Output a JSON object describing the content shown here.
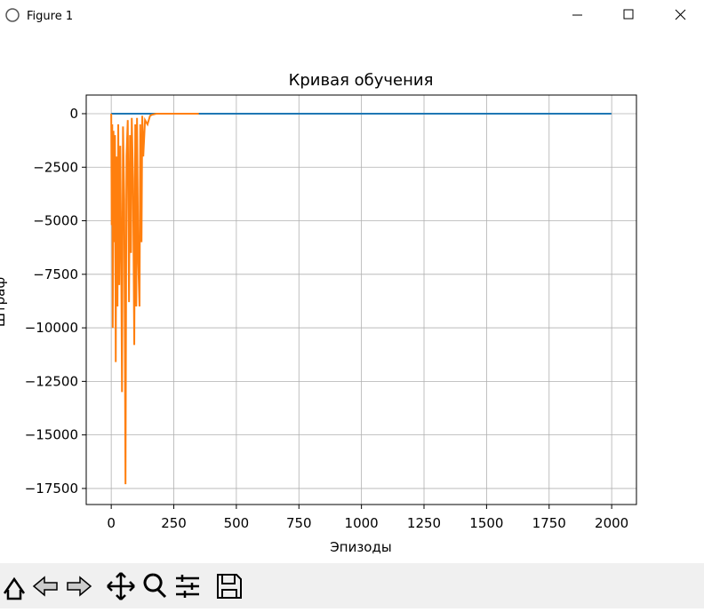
{
  "window": {
    "title": "Figure 1"
  },
  "chart_data": {
    "type": "line",
    "title": "Кривая обучения",
    "x_label": "Эпизоды",
    "y_label": "Штраф",
    "xlim": [
      -100,
      2099
    ],
    "ylim": [
      -18250,
      870
    ],
    "grid": true,
    "xticks": [
      0,
      250,
      500,
      750,
      1000,
      1250,
      1500,
      1750,
      2000
    ],
    "yticks": [
      0,
      {
        "value": -2500,
        "label": "−2500"
      },
      {
        "value": -5000,
        "label": "−5000"
      },
      {
        "value": -7500,
        "label": "−7500"
      },
      {
        "value": -10000,
        "label": "−10000"
      },
      {
        "value": -12500,
        "label": "−12500"
      },
      {
        "value": -15000,
        "label": "−15000"
      },
      {
        "value": -17500,
        "label": "−17500"
      }
    ],
    "series": [
      {
        "color": "#1f77b4",
        "x": [
          0,
          1999
        ],
        "values": [
          0,
          0
        ]
      },
      {
        "color": "#ff7f0e",
        "x": [
          0,
          2,
          4,
          6,
          9,
          12,
          15,
          18,
          21,
          25,
          28,
          32,
          36,
          40,
          43,
          47,
          52,
          57,
          61,
          66,
          71,
          75,
          79,
          82,
          87,
          92,
          96,
          100,
          103,
          108,
          113,
          116,
          121,
          124,
          128,
          135,
          145,
          155,
          163,
          180,
          250,
          350
        ],
        "values": [
          0,
          -5200,
          -500,
          -10000,
          -800,
          -6000,
          -1000,
          -11600,
          -2000,
          -9000,
          -500,
          -8000,
          -1500,
          -7000,
          -13000,
          -600,
          -4000,
          -17300,
          -2000,
          -300,
          -8800,
          -1000,
          -6500,
          -200,
          -3000,
          -10800,
          -500,
          -9000,
          -200,
          -7000,
          -9000,
          -500,
          -6000,
          -100,
          -2000,
          -300,
          -500,
          -100,
          -50,
          0,
          0,
          0
        ]
      }
    ]
  }
}
